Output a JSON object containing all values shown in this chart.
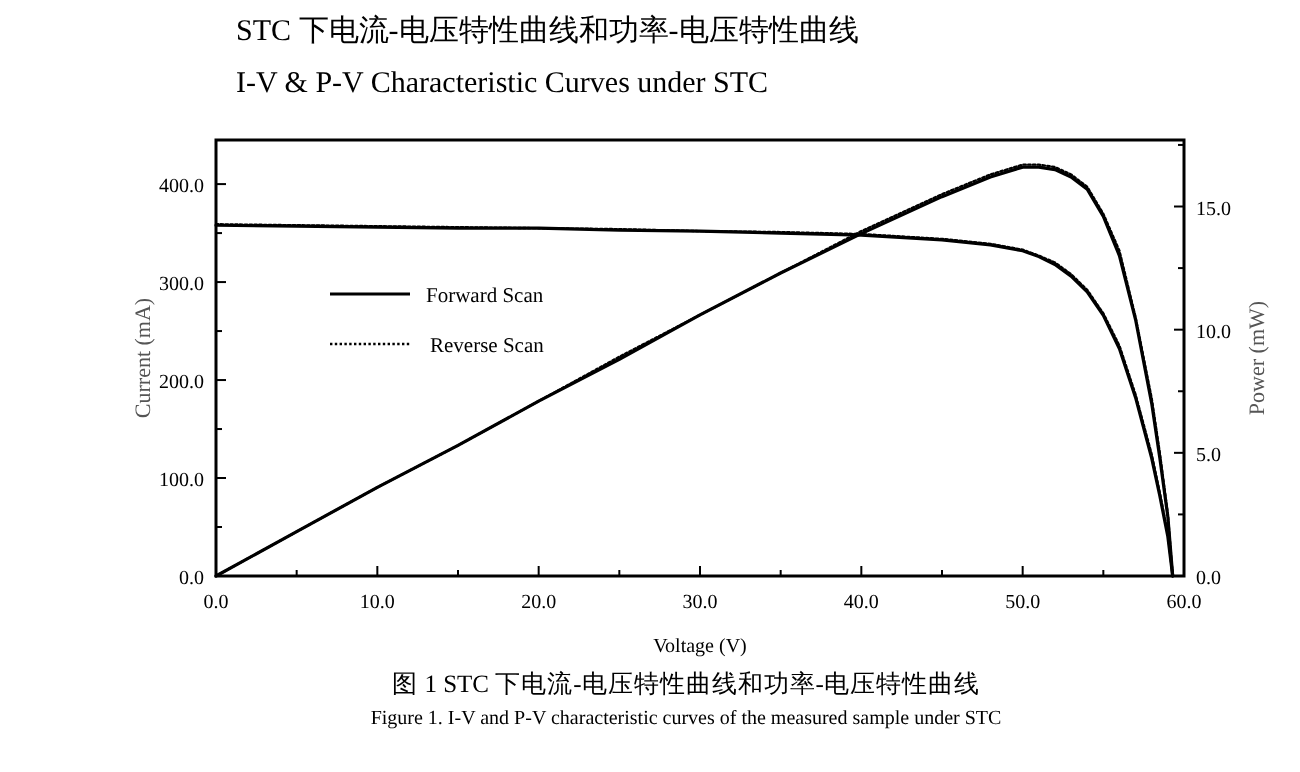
{
  "chart_data": {
    "type": "line",
    "title": "STC 下电流-电压特性曲线和功率-电压特性曲线",
    "subtitle": "I-V & P-V Characteristic Curves under STC",
    "xlabel": "Voltage (V)",
    "ylabel": "Current (mA)",
    "y2label": "Power (mW)",
    "annotations": [
      "图 1 STC 下电流-电压特性曲线和功率-电压特性曲线",
      "Figure 1. I-V and P-V characteristic curves of the measured sample under STC"
    ],
    "x": [
      0,
      5,
      10,
      15,
      20,
      25,
      30,
      35,
      40,
      45,
      48,
      50,
      51,
      52,
      53,
      54,
      55,
      56,
      57,
      58,
      58.5,
      59,
      59.3
    ],
    "series": [
      {
        "name": "Forward Scan",
        "color": "#000000",
        "line_style": "solid",
        "values": [
          358,
          357,
          356,
          355,
          355,
          353,
          352,
          350,
          348,
          343,
          338,
          332,
          326,
          318,
          306,
          290,
          266,
          232,
          182,
          120,
          82,
          40,
          0
        ]
      },
      {
        "name": "Reverse Scan",
        "color": "#000000",
        "line_style": "dotted",
        "values": [
          359,
          358,
          357,
          356,
          355,
          354,
          352,
          351,
          349,
          344,
          339,
          333,
          327,
          320,
          308,
          292,
          268,
          235,
          185,
          124,
          85,
          43,
          0
        ]
      },
      {
        "color": "#000000",
        "line_style": "solid",
        "axis": "y2",
        "values": [
          0,
          1.8,
          3.6,
          5.3,
          7.1,
          8.8,
          10.6,
          12.3,
          13.9,
          15.4,
          16.2,
          16.6,
          16.6,
          16.5,
          16.2,
          15.7,
          14.6,
          13.0,
          10.4,
          7.0,
          4.8,
          2.4,
          0
        ]
      },
      {
        "color": "#000000",
        "line_style": "dotted",
        "axis": "y2",
        "values": [
          0,
          1.8,
          3.6,
          5.3,
          7.1,
          8.9,
          10.6,
          12.3,
          14.0,
          15.5,
          16.3,
          16.7,
          16.7,
          16.6,
          16.3,
          15.8,
          14.7,
          13.2,
          10.5,
          7.2,
          5.0,
          2.5,
          0
        ]
      }
    ],
    "xlim": [
      0,
      60
    ],
    "ylim": [
      0,
      445
    ],
    "y2lim": [
      0,
      17.7
    ],
    "xticks": [
      {
        "value": 0,
        "label": "0.0"
      },
      {
        "value": 5,
        "label": null
      },
      {
        "value": 10,
        "label": "10.0"
      },
      {
        "value": 15,
        "label": null
      },
      {
        "value": 20,
        "label": "20.0"
      },
      {
        "value": 25,
        "label": null
      },
      {
        "value": 30,
        "label": "30.0"
      },
      {
        "value": 35,
        "label": null
      },
      {
        "value": 40,
        "label": "40.0"
      },
      {
        "value": 45,
        "label": null
      },
      {
        "value": 50,
        "label": "50.0"
      },
      {
        "value": 55,
        "label": null
      },
      {
        "value": 60,
        "label": "60.0"
      }
    ],
    "yticks": [
      {
        "value": 0,
        "label": "0.0"
      },
      {
        "value": 50,
        "label": null
      },
      {
        "value": 100,
        "label": "100.0"
      },
      {
        "value": 150,
        "label": null
      },
      {
        "value": 200,
        "label": "200.0"
      },
      {
        "value": 250,
        "label": null
      },
      {
        "value": 300,
        "label": "300.0"
      },
      {
        "value": 350,
        "label": null
      },
      {
        "value": 400,
        "label": "400.0"
      }
    ],
    "y2ticks": [
      {
        "value": 0,
        "label": "0.0"
      },
      {
        "value": 2.5,
        "label": null
      },
      {
        "value": 5,
        "label": "5.0"
      },
      {
        "value": 7.5,
        "label": null
      },
      {
        "value": 10,
        "label": "10.0"
      },
      {
        "value": 12.5,
        "label": null
      },
      {
        "value": 15,
        "label": "15.0"
      },
      {
        "value": 17.5,
        "label": null
      }
    ],
    "grid": false,
    "legend": "left",
    "marker": "none"
  }
}
